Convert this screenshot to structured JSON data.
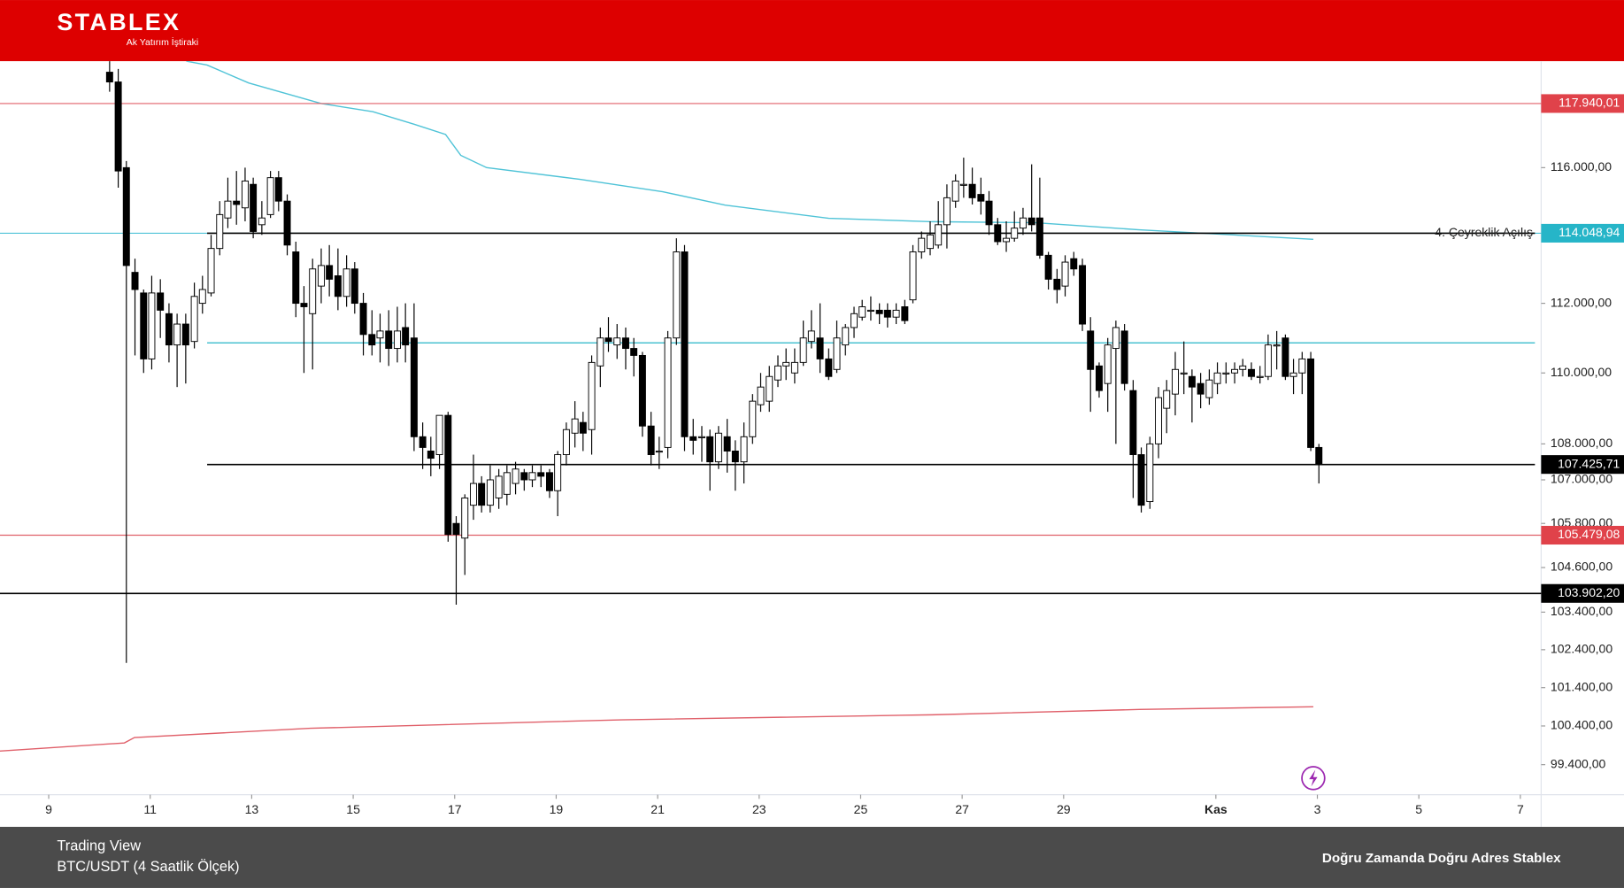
{
  "header": {
    "brand": "STABLEX",
    "subtitle": "Ak Yatırım İştiraki"
  },
  "footer": {
    "source": "Trading View",
    "pair": "BTC/USDT (4 Saatlik Ölçek)",
    "slogan": "Doğru Zamanda Doğru Adres Stablex"
  },
  "chart_data": {
    "type": "candlestick",
    "log_scale": true,
    "grid": false,
    "up_color": "#ffffff",
    "down_color": "#000000",
    "wick_color": "#000000",
    "xlim": [
      8.04,
      38.41
    ],
    "xticks": [
      9,
      11,
      13,
      15,
      17,
      19,
      21,
      23,
      25,
      27,
      29,
      {
        "value": 32,
        "label": "Kas"
      },
      {
        "value": 34,
        "label": "3"
      },
      {
        "value": 36,
        "label": "5"
      },
      {
        "value": 38,
        "label": "7"
      }
    ],
    "ylim": [
      98630,
      119240
    ],
    "yticks": [
      {
        "value": 116000,
        "label": "116.000,00"
      },
      {
        "value": 112000,
        "label": "112.000,00"
      },
      {
        "value": 110000,
        "label": "110.000,00"
      },
      {
        "value": 108000,
        "label": "108.000,00"
      },
      {
        "value": 107000,
        "label": "107.000,00"
      },
      {
        "value": 105800,
        "label": "105.800,00"
      },
      {
        "value": 104600,
        "label": "104.600,00"
      },
      {
        "value": 103400,
        "label": "103.400,00"
      },
      {
        "value": 102400,
        "label": "102.400,00"
      },
      {
        "value": 101400,
        "label": "101.400,00"
      },
      {
        "value": 100400,
        "label": "100.400,00"
      },
      {
        "value": 99400,
        "label": "99.400,00"
      }
    ],
    "x": [
      10.2,
      10.37,
      10.53,
      10.7,
      10.87,
      11.03,
      11.2,
      11.37,
      11.53,
      11.7,
      11.87,
      12.03,
      12.2,
      12.37,
      12.53,
      12.7,
      12.87,
      13.03,
      13.2,
      13.37,
      13.53,
      13.7,
      13.87,
      14.03,
      14.2,
      14.37,
      14.53,
      14.7,
      14.87,
      15.03,
      15.2,
      15.37,
      15.53,
      15.7,
      15.87,
      16.03,
      16.2,
      16.37,
      16.53,
      16.7,
      16.87,
      17.03,
      17.2,
      17.37,
      17.53,
      17.7,
      17.87,
      18.03,
      18.2,
      18.37,
      18.53,
      18.7,
      18.87,
      19.03,
      19.2,
      19.37,
      19.53,
      19.7,
      19.87,
      20.03,
      20.2,
      20.37,
      20.53,
      20.7,
      20.87,
      21.03,
      21.2,
      21.37,
      21.53,
      21.7,
      21.87,
      22.03,
      22.2,
      22.37,
      22.53,
      22.7,
      22.87,
      23.03,
      23.2,
      23.37,
      23.53,
      23.7,
      23.87,
      24.03,
      24.2,
      24.37,
      24.53,
      24.7,
      24.87,
      25.03,
      25.2,
      25.37,
      25.53,
      25.7,
      25.87,
      26.03,
      26.2,
      26.37,
      26.53,
      26.7,
      26.87,
      27.03,
      27.2,
      27.37,
      27.53,
      27.7,
      27.87,
      28.03,
      28.2,
      28.37,
      28.53,
      28.7,
      28.87,
      29.03,
      29.2,
      29.37,
      29.53,
      29.7,
      29.87,
      30.03,
      30.2,
      30.37,
      30.53,
      30.7,
      30.87,
      31.03,
      31.2,
      31.37,
      31.53,
      31.7,
      31.87,
      32.03,
      32.2,
      32.37,
      32.53,
      32.7,
      32.87,
      33.03,
      33.2,
      33.37,
      33.53,
      33.7,
      33.87,
      34.03
    ],
    "open": [
      118900,
      118600,
      116000,
      112900,
      112300,
      110400,
      112300,
      111700,
      110800,
      111400,
      110900,
      112000,
      112300,
      113600,
      114500,
      115000,
      114800,
      115500,
      114300,
      114600,
      115700,
      115000,
      113500,
      112000,
      111700,
      112500,
      113100,
      112800,
      112200,
      113000,
      112000,
      111100,
      111000,
      111200,
      110700,
      111300,
      111000,
      108200,
      107800,
      107700,
      108800,
      105800,
      105400,
      106300,
      106900,
      106300,
      106500,
      106600,
      106900,
      107200,
      107000,
      107200,
      107200,
      106700,
      107700,
      108300,
      108600,
      108400,
      110200,
      111000,
      110800,
      111000,
      110700,
      110500,
      108500,
      107800,
      107900,
      111000,
      113500,
      108200,
      108200,
      108200,
      107500,
      108200,
      107800,
      107500,
      108200,
      109100,
      109200,
      109800,
      110200,
      110000,
      110300,
      110900,
      111000,
      110400,
      110100,
      110800,
      111300,
      111600,
      111800,
      111800,
      111800,
      111600,
      111900,
      112100,
      113500,
      113600,
      113700,
      114300,
      115000,
      115500,
      115500,
      115200,
      115000,
      114300,
      113800,
      113900,
      114200,
      114500,
      114500,
      113400,
      112700,
      112500,
      113300,
      113100,
      111200,
      110200,
      109700,
      110700,
      111200,
      109500,
      107700,
      106400,
      108000,
      109000,
      109400,
      110000,
      109900,
      109700,
      109300,
      109700,
      110000,
      110000,
      110100,
      110100,
      109900,
      109900,
      110800,
      111000,
      109900,
      110000,
      110400,
      107900
    ],
    "high": [
      119300,
      119000,
      116200,
      113300,
      112400,
      112800,
      112700,
      112000,
      111700,
      111700,
      112600,
      112800,
      114000,
      115000,
      115700,
      115900,
      116000,
      115700,
      115000,
      115900,
      115900,
      115200,
      113800,
      112500,
      113300,
      113600,
      113700,
      113600,
      113400,
      113200,
      112300,
      111800,
      111700,
      111800,
      111900,
      112000,
      112000,
      108600,
      108200,
      108800,
      108900,
      106000,
      106600,
      107700,
      107100,
      107400,
      107300,
      107400,
      107500,
      107300,
      107400,
      107400,
      107300,
      107800,
      108600,
      109200,
      108900,
      110500,
      111300,
      111600,
      111400,
      111300,
      111000,
      110600,
      108900,
      108200,
      111200,
      113900,
      113700,
      108700,
      108500,
      108400,
      108500,
      108700,
      108100,
      108600,
      109400,
      110000,
      110200,
      110500,
      110700,
      110700,
      111500,
      111800,
      112000,
      110700,
      111500,
      111400,
      111900,
      112100,
      112200,
      112000,
      112000,
      112000,
      112100,
      113700,
      114100,
      114400,
      115000,
      115500,
      115800,
      116300,
      116000,
      115700,
      115300,
      114500,
      114400,
      114700,
      114800,
      116100,
      115700,
      113500,
      113000,
      113400,
      113500,
      113300,
      111600,
      110300,
      111000,
      111500,
      111400,
      109800,
      107900,
      108200,
      109600,
      109800,
      110600,
      110900,
      110100,
      110000,
      110100,
      110300,
      110300,
      110300,
      110400,
      110300,
      110200,
      111100,
      111200,
      111100,
      110400,
      110600,
      110600,
      108000
    ],
    "low": [
      118300,
      115400,
      102050,
      110500,
      110000,
      110100,
      111000,
      110300,
      109600,
      109700,
      110700,
      111700,
      112200,
      113400,
      114200,
      114300,
      114400,
      113900,
      114000,
      114500,
      114700,
      113400,
      111600,
      110000,
      110100,
      112000,
      112200,
      111800,
      111900,
      111700,
      110500,
      110500,
      110300,
      110200,
      110300,
      110300,
      107800,
      107300,
      107100,
      107300,
      105300,
      103600,
      104400,
      105900,
      106100,
      106100,
      106200,
      106300,
      106600,
      106700,
      106800,
      106800,
      106500,
      106000,
      107400,
      107900,
      107800,
      107700,
      109600,
      110600,
      110400,
      110100,
      109900,
      108200,
      107400,
      107300,
      107600,
      110800,
      107800,
      107700,
      107500,
      106700,
      107300,
      107200,
      106700,
      106900,
      108000,
      108900,
      108900,
      109600,
      109800,
      109700,
      110200,
      110700,
      110000,
      109800,
      110000,
      110500,
      111000,
      111500,
      111500,
      111400,
      111300,
      111400,
      111400,
      112000,
      113300,
      113400,
      113600,
      113600,
      114800,
      115100,
      114900,
      114600,
      114000,
      113700,
      113500,
      113800,
      114000,
      114100,
      113300,
      112400,
      112000,
      112200,
      112800,
      111200,
      108900,
      109300,
      108900,
      108000,
      109500,
      106500,
      106100,
      106200,
      107600,
      108300,
      108800,
      109400,
      108600,
      109000,
      109100,
      109400,
      109700,
      109700,
      109900,
      109800,
      109700,
      109800,
      110100,
      109800,
      109400,
      109400,
      107800,
      106900
    ],
    "close": [
      118600,
      115900,
      113100,
      112400,
      110400,
      112300,
      111800,
      110800,
      111400,
      110800,
      112200,
      112400,
      113600,
      114600,
      115000,
      114900,
      115600,
      114100,
      114500,
      115700,
      115000,
      113700,
      112000,
      111900,
      113000,
      113100,
      112700,
      112200,
      113000,
      112000,
      111100,
      110800,
      111200,
      110700,
      111200,
      110800,
      108200,
      107900,
      107600,
      108800,
      105500,
      105500,
      106500,
      106900,
      106300,
      107000,
      107100,
      107200,
      107300,
      107000,
      107200,
      107100,
      106700,
      107700,
      108400,
      108700,
      108300,
      110300,
      111000,
      110900,
      111000,
      110700,
      110500,
      108500,
      107700,
      107800,
      111000,
      113500,
      108200,
      108100,
      108200,
      107500,
      108300,
      107800,
      107500,
      108200,
      109200,
      109600,
      109900,
      110200,
      110300,
      110300,
      111000,
      111200,
      110400,
      109900,
      111000,
      111300,
      111700,
      111900,
      111800,
      111700,
      111600,
      111800,
      111500,
      113500,
      113900,
      114000,
      114300,
      115100,
      115600,
      115500,
      115100,
      115000,
      114300,
      113800,
      113900,
      114200,
      114500,
      114300,
      113400,
      112700,
      112400,
      113200,
      113000,
      111400,
      110100,
      109500,
      110800,
      111300,
      109700,
      107700,
      106300,
      108000,
      109300,
      109500,
      110100,
      110000,
      109600,
      109400,
      109800,
      110000,
      110000,
      110100,
      110200,
      109900,
      109900,
      110800,
      110800,
      109900,
      110000,
      110400,
      107900,
      107425.71
    ],
    "overlays": [
      {
        "color": "#4fc3d7",
        "x": [
          11.71,
          12.12,
          12.94,
          14.37,
          15.39,
          16.2,
          16.82,
          17.12,
          17.63,
          19.47,
          21.1,
          22.33,
          24.37,
          26.41,
          28.45,
          30.49,
          33.92
        ],
        "values": [
          119240,
          119120,
          118570,
          117940,
          117690,
          117310,
          117000,
          116370,
          116000,
          115650,
          115280,
          114880,
          114490,
          114390,
          114360,
          114150,
          113870
        ]
      },
      {
        "color": "#e0606a",
        "x": [
          8.04,
          10.49,
          10.69,
          14.16,
          20.29,
          26.41,
          30.49,
          33.92
        ],
        "values": [
          99750,
          99960,
          100100,
          100340,
          100560,
          100690,
          100830,
          100900
        ]
      }
    ],
    "levels": [
      {
        "value": 117940.01,
        "label": "117.940,01",
        "line_color": "#e0606a",
        "label_color": "#e0424a",
        "partial": false
      },
      {
        "value": 114048.94,
        "label": "114.048,94",
        "annotation": "4. Çeyreklik Açılış",
        "line_color": "#000000",
        "underline_color": "#4fc3d7",
        "label_color": "#26b5c8",
        "partial": true
      },
      {
        "value": 110860,
        "line_color": "#26b5c8",
        "partial": true
      },
      {
        "value": 107425.71,
        "label": "107.425,71",
        "line_color": "#000000",
        "label_color": "#000000",
        "partial": true
      },
      {
        "value": 105479.08,
        "label": "105.479,08",
        "line_color": "#e0606a",
        "label_color": "#e0424a",
        "partial": false
      },
      {
        "value": 103902.2,
        "label": "103.902,20",
        "line_color": "#000000",
        "label_color": "#000000",
        "partial": false
      }
    ]
  }
}
